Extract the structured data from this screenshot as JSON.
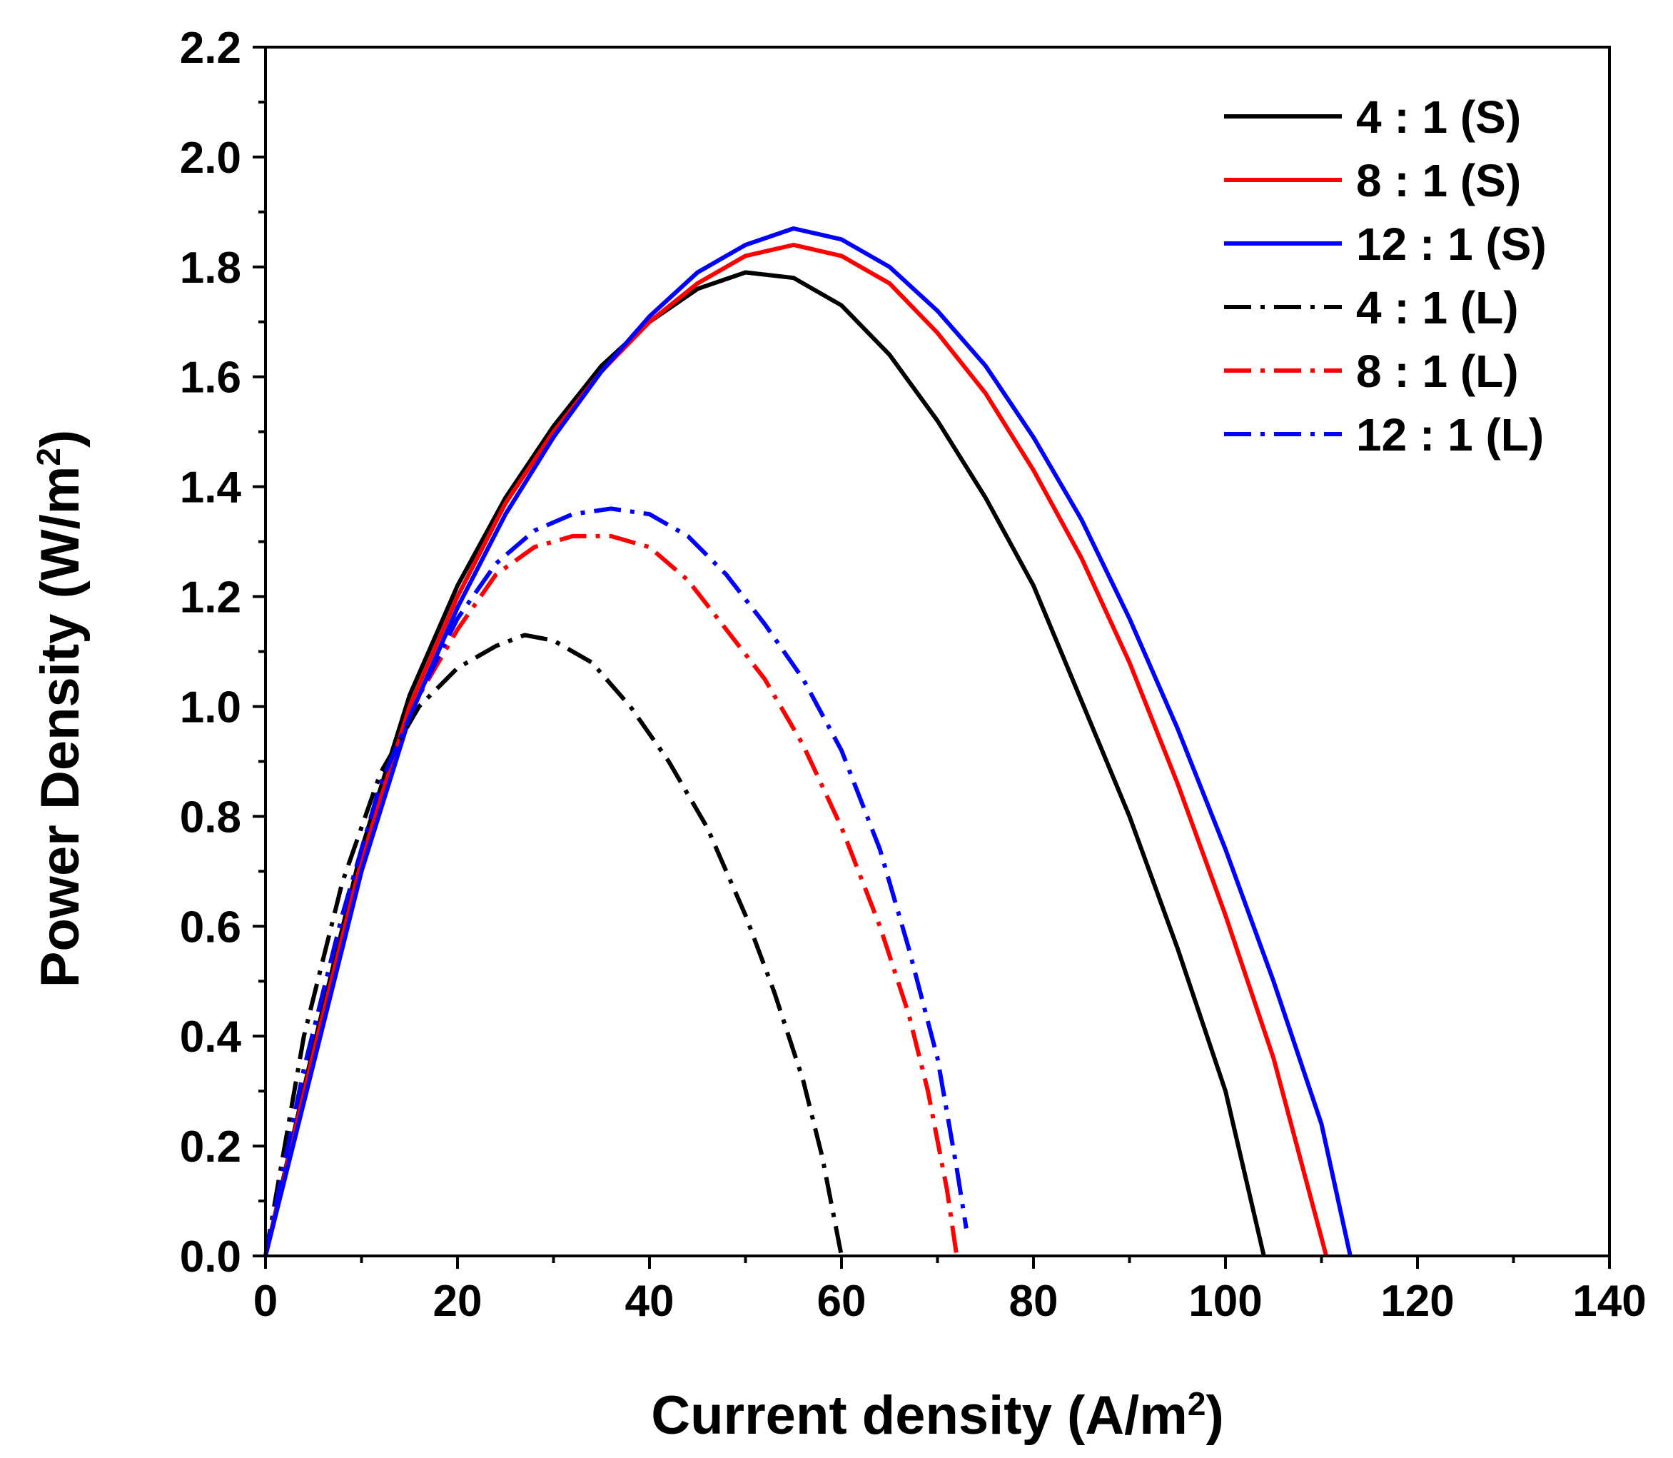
{
  "chart_data": {
    "type": "line",
    "title": "",
    "xlabel_base": "Current density (A/m",
    "xlabel_sup": "2",
    "xlabel_end": ")",
    "ylabel_base": "Power Density (W/m",
    "ylabel_sup": "2",
    "ylabel_end": ")",
    "xlim": [
      0,
      140
    ],
    "ylim": [
      0.0,
      2.2
    ],
    "xticks": [
      0,
      20,
      40,
      60,
      80,
      100,
      120,
      140
    ],
    "xtick_labels": [
      "0",
      "20",
      "40",
      "60",
      "80",
      "100",
      "120",
      "140"
    ],
    "yticks": [
      0.0,
      0.2,
      0.4,
      0.6,
      0.8,
      1.0,
      1.2,
      1.4,
      1.6,
      1.8,
      2.0,
      2.2
    ],
    "ytick_labels": [
      "0.0",
      "0.2",
      "0.4",
      "0.6",
      "0.8",
      "1.0",
      "1.2",
      "1.4",
      "1.6",
      "1.8",
      "2.0",
      "2.2"
    ],
    "grid": false,
    "legend_position": "top-right",
    "series": [
      {
        "name": "4 : 1 (S)",
        "color": "#000000",
        "dash": "solid",
        "points": [
          [
            0,
            0
          ],
          [
            5,
            0.38
          ],
          [
            10,
            0.74
          ],
          [
            15,
            1.02
          ],
          [
            20,
            1.22
          ],
          [
            25,
            1.38
          ],
          [
            30,
            1.51
          ],
          [
            35,
            1.62
          ],
          [
            40,
            1.7
          ],
          [
            45,
            1.76
          ],
          [
            50,
            1.79
          ],
          [
            55,
            1.78
          ],
          [
            60,
            1.73
          ],
          [
            65,
            1.64
          ],
          [
            70,
            1.52
          ],
          [
            75,
            1.38
          ],
          [
            80,
            1.22
          ],
          [
            85,
            1.01
          ],
          [
            90,
            0.8
          ],
          [
            95,
            0.56
          ],
          [
            100,
            0.3
          ],
          [
            104,
            0.0
          ]
        ]
      },
      {
        "name": "8 : 1 (S)",
        "color": "#ff0000",
        "dash": "solid",
        "points": [
          [
            0,
            0
          ],
          [
            5,
            0.37
          ],
          [
            10,
            0.72
          ],
          [
            15,
            1.0
          ],
          [
            20,
            1.2
          ],
          [
            25,
            1.37
          ],
          [
            30,
            1.5
          ],
          [
            35,
            1.61
          ],
          [
            40,
            1.7
          ],
          [
            45,
            1.77
          ],
          [
            50,
            1.82
          ],
          [
            55,
            1.84
          ],
          [
            60,
            1.82
          ],
          [
            65,
            1.77
          ],
          [
            70,
            1.68
          ],
          [
            75,
            1.57
          ],
          [
            80,
            1.43
          ],
          [
            85,
            1.27
          ],
          [
            90,
            1.08
          ],
          [
            95,
            0.86
          ],
          [
            100,
            0.62
          ],
          [
            105,
            0.36
          ],
          [
            110.5,
            0.0
          ]
        ]
      },
      {
        "name": "12 : 1 (S)",
        "color": "#0000ff",
        "dash": "solid",
        "points": [
          [
            0,
            0
          ],
          [
            5,
            0.35
          ],
          [
            10,
            0.7
          ],
          [
            15,
            0.98
          ],
          [
            20,
            1.18
          ],
          [
            25,
            1.35
          ],
          [
            30,
            1.49
          ],
          [
            35,
            1.61
          ],
          [
            40,
            1.71
          ],
          [
            45,
            1.79
          ],
          [
            50,
            1.84
          ],
          [
            55,
            1.87
          ],
          [
            60,
            1.85
          ],
          [
            65,
            1.8
          ],
          [
            70,
            1.72
          ],
          [
            75,
            1.62
          ],
          [
            80,
            1.49
          ],
          [
            85,
            1.34
          ],
          [
            90,
            1.16
          ],
          [
            95,
            0.96
          ],
          [
            100,
            0.74
          ],
          [
            105,
            0.5
          ],
          [
            110,
            0.24
          ],
          [
            113,
            0.0
          ]
        ]
      },
      {
        "name": "4 : 1 (L)",
        "color": "#000000",
        "dash": "dashdot",
        "points": [
          [
            0,
            0
          ],
          [
            4,
            0.4
          ],
          [
            8,
            0.68
          ],
          [
            12,
            0.88
          ],
          [
            16,
            1.0
          ],
          [
            20,
            1.07
          ],
          [
            24,
            1.11
          ],
          [
            27,
            1.13
          ],
          [
            30,
            1.12
          ],
          [
            34,
            1.08
          ],
          [
            38,
            1.0
          ],
          [
            42,
            0.9
          ],
          [
            46,
            0.78
          ],
          [
            50,
            0.62
          ],
          [
            53,
            0.48
          ],
          [
            56,
            0.32
          ],
          [
            58,
            0.18
          ],
          [
            60,
            0.0
          ]
        ]
      },
      {
        "name": "8 : 1 (L)",
        "color": "#ff0000",
        "dash": "dashdot",
        "points": [
          [
            0,
            0
          ],
          [
            4,
            0.34
          ],
          [
            8,
            0.62
          ],
          [
            12,
            0.86
          ],
          [
            16,
            1.02
          ],
          [
            20,
            1.14
          ],
          [
            24,
            1.24
          ],
          [
            28,
            1.29
          ],
          [
            32,
            1.31
          ],
          [
            36,
            1.31
          ],
          [
            40,
            1.29
          ],
          [
            44,
            1.23
          ],
          [
            48,
            1.14
          ],
          [
            52,
            1.05
          ],
          [
            56,
            0.93
          ],
          [
            60,
            0.78
          ],
          [
            64,
            0.6
          ],
          [
            67,
            0.44
          ],
          [
            69,
            0.3
          ],
          [
            71,
            0.12
          ],
          [
            72,
            0.0
          ]
        ]
      },
      {
        "name": "12 : 1 (L)",
        "color": "#0000ff",
        "dash": "dashdot",
        "points": [
          [
            0,
            0
          ],
          [
            4,
            0.34
          ],
          [
            8,
            0.62
          ],
          [
            12,
            0.86
          ],
          [
            16,
            1.02
          ],
          [
            20,
            1.16
          ],
          [
            24,
            1.26
          ],
          [
            28,
            1.32
          ],
          [
            32,
            1.35
          ],
          [
            36,
            1.36
          ],
          [
            40,
            1.35
          ],
          [
            44,
            1.31
          ],
          [
            48,
            1.24
          ],
          [
            52,
            1.15
          ],
          [
            56,
            1.05
          ],
          [
            60,
            0.92
          ],
          [
            64,
            0.74
          ],
          [
            67,
            0.56
          ],
          [
            70,
            0.36
          ],
          [
            72,
            0.16
          ],
          [
            73,
            0.05
          ]
        ]
      }
    ]
  }
}
